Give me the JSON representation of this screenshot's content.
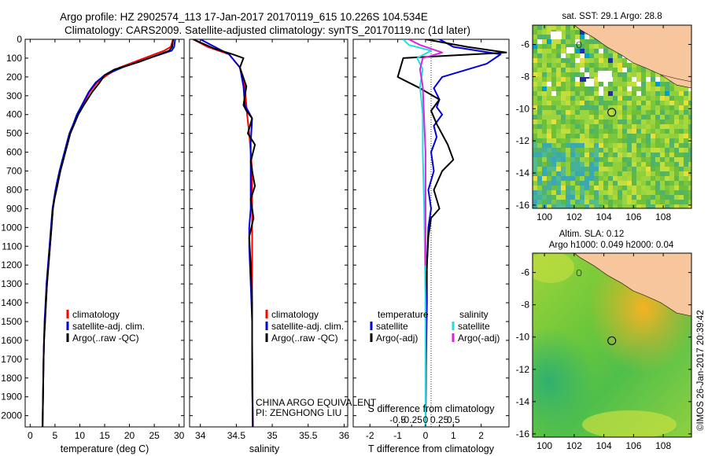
{
  "header": {
    "title_line1": "Argo profile: HZ 2902574_113 17-Jan-2017 20170119_615 10.226S 104.534E",
    "title_line2": "Climatology: CARS2009. Satellite-adjusted climatology: synTS_20170119.nc (1d later)"
  },
  "footer": {
    "credit": "©IMOS 26-Jan-2017 20:39:42",
    "agency_line1": "CHINA ARGO EQUIVALENT",
    "agency_line2": "PI: ZENGHONG LIU"
  },
  "colors": {
    "clim": "#ff0000",
    "sat": "#0000dd",
    "argo": "#000000",
    "sat_s": "#22dddd",
    "argo_s": "#dd22dd",
    "land": "#f7c69c"
  },
  "chart_data": [
    {
      "type": "line",
      "name": "temperature-profile",
      "xlabel": "temperature (deg C)",
      "ylabel": "",
      "xlim": [
        -1,
        31
      ],
      "ylim": [
        2060,
        0
      ],
      "xticks": [
        0,
        5,
        10,
        15,
        20,
        25,
        30
      ],
      "yticks": [
        0,
        100,
        200,
        300,
        400,
        500,
        600,
        700,
        800,
        900,
        1000,
        1100,
        1200,
        1300,
        1400,
        1500,
        1600,
        1700,
        1800,
        1900,
        2000
      ],
      "legend": [
        "climatology",
        "satellite-adj. clim.",
        "Argo(..raw -QC)"
      ],
      "legend_position": "lower-right",
      "series": [
        {
          "name": "climatology",
          "color": "#ff0000",
          "x": [
            28.8,
            28.3,
            27.0,
            23.0,
            18.0,
            15.5,
            13.5,
            12.0,
            10.5,
            9.5,
            8.8,
            8.0,
            7.5,
            7.0,
            6.5,
            6.0,
            5.6,
            5.2,
            4.9,
            4.6,
            4.3,
            4.0,
            3.7,
            3.4,
            3.2,
            3.0,
            2.8,
            2.7,
            2.6,
            2.5
          ],
          "y": [
            0,
            40,
            60,
            100,
            150,
            190,
            230,
            280,
            350,
            400,
            450,
            500,
            550,
            600,
            650,
            700,
            750,
            800,
            850,
            900,
            1000,
            1100,
            1200,
            1300,
            1400,
            1500,
            1600,
            1700,
            1900,
            2060
          ]
        },
        {
          "name": "satellite-adj. clim.",
          "color": "#0000dd",
          "x": [
            29.2,
            29.0,
            28.5,
            24.0,
            18.5,
            15.0,
            13.2,
            11.8,
            10.4,
            9.4,
            8.7,
            7.9,
            7.4,
            6.9,
            6.4,
            5.9,
            5.5,
            5.1,
            4.8,
            4.5,
            4.2,
            3.9,
            3.6,
            3.3,
            3.1,
            2.9,
            2.8,
            2.7,
            2.6,
            2.5
          ],
          "y": [
            0,
            40,
            60,
            100,
            150,
            190,
            230,
            280,
            350,
            400,
            450,
            500,
            550,
            600,
            650,
            700,
            750,
            800,
            850,
            900,
            1000,
            1100,
            1200,
            1300,
            1400,
            1500,
            1600,
            1700,
            1900,
            2060
          ]
        },
        {
          "name": "Argo(..raw -QC)",
          "color": "#000000",
          "x": [
            28.8,
            28.6,
            28.0,
            22.0,
            17.0,
            15.0,
            14.0,
            12.5,
            10.8,
            9.7,
            8.9,
            8.1,
            7.6,
            7.1,
            6.6,
            6.1,
            5.7,
            5.3,
            4.9,
            4.6,
            4.3,
            4.0,
            3.7,
            3.4,
            3.2,
            3.0,
            2.8,
            2.7,
            2.6,
            2.5
          ],
          "y": [
            0,
            40,
            60,
            120,
            160,
            190,
            230,
            280,
            350,
            400,
            450,
            500,
            550,
            600,
            650,
            700,
            750,
            800,
            850,
            900,
            1000,
            1100,
            1200,
            1300,
            1400,
            1500,
            1600,
            1700,
            1900,
            2060
          ]
        }
      ]
    },
    {
      "type": "line",
      "name": "salinity-profile",
      "xlabel": "salinity",
      "ylabel": "",
      "xlim": [
        33.85,
        36.05
      ],
      "ylim": [
        2060,
        0
      ],
      "xticks": [
        34,
        34.5,
        35,
        35.5,
        36
      ],
      "legend": [
        "climatology",
        "satellite-adj. clim.",
        "Argo(..raw -QC)"
      ],
      "legend_position": "lower-right",
      "series": [
        {
          "name": "climatology",
          "color": "#ff0000",
          "x": [
            33.9,
            34.1,
            34.4,
            34.55,
            34.62,
            34.65,
            34.68,
            34.7,
            34.72,
            34.72,
            34.72,
            34.72,
            34.72,
            34.72,
            34.72,
            34.73
          ],
          "y": [
            0,
            40,
            80,
            150,
            250,
            400,
            500,
            600,
            700,
            900,
            1000,
            1200,
            1400,
            1600,
            1800,
            2060
          ]
        },
        {
          "name": "satellite-adj. clim.",
          "color": "#0000dd",
          "x": [
            34.0,
            34.2,
            34.4,
            34.55,
            34.6,
            34.62,
            34.72,
            34.7,
            34.7,
            34.7,
            34.68,
            34.68,
            34.7,
            34.72,
            34.72,
            34.73
          ],
          "y": [
            0,
            40,
            80,
            150,
            250,
            350,
            420,
            550,
            700,
            900,
            1000,
            1100,
            1300,
            1500,
            1800,
            2060
          ]
        },
        {
          "name": "Argo(..raw -QC)",
          "color": "#000000",
          "x": [
            33.9,
            34.2,
            34.45,
            34.6,
            34.55,
            34.64,
            34.6,
            34.64,
            34.72,
            34.66,
            34.76,
            34.7,
            34.73,
            34.76,
            34.7,
            34.74,
            34.68,
            34.7,
            34.72,
            34.72,
            34.73
          ],
          "y": [
            0,
            50,
            80,
            100,
            150,
            250,
            350,
            380,
            420,
            500,
            560,
            650,
            720,
            780,
            850,
            950,
            1050,
            1200,
            1400,
            1600,
            2060
          ]
        }
      ]
    },
    {
      "type": "line",
      "name": "difference-profile",
      "xlabel": "T difference from climatology",
      "x2label": "S difference from climatology",
      "ylabel": "",
      "xlim": [
        -2.6,
        3.0
      ],
      "ylim": [
        2060,
        0
      ],
      "xticks": [
        -2,
        -1,
        0,
        1,
        2
      ],
      "x2ticks_labels": [
        "-0.5",
        "-0.25",
        "0",
        "0.25",
        "0.5"
      ],
      "legend": [
        "temperature",
        "satellite",
        "Argo(-adj)",
        "salinity",
        "satellite",
        "Argo(-adj)"
      ],
      "legend_position": "lower-center",
      "series": [
        {
          "name": "temperature satellite",
          "color": "#0000dd",
          "x": [
            0.5,
            1.0,
            2.7,
            2.2,
            0.6,
            0.3,
            0.5,
            0.4,
            0.6,
            0.3,
            0.4,
            0.2,
            0.3,
            0.1,
            0.2,
            0.1,
            0.05,
            0.05,
            0.02,
            0.0
          ],
          "y": [
            0,
            40,
            80,
            130,
            200,
            260,
            320,
            360,
            400,
            460,
            520,
            600,
            700,
            800,
            900,
            1000,
            1200,
            1400,
            1700,
            2060
          ]
        },
        {
          "name": "temperature Argo(-adj)",
          "color": "#000000",
          "x": [
            0.0,
            1.5,
            2.9,
            -0.8,
            -1.0,
            -0.2,
            0.5,
            0.2,
            0.4,
            0.8,
            1.0,
            0.6,
            0.3,
            0.5,
            0.2,
            0.1,
            0.05,
            0.0,
            0.02,
            0.0
          ],
          "y": [
            0,
            40,
            70,
            100,
            200,
            260,
            320,
            380,
            450,
            560,
            640,
            700,
            800,
            900,
            950,
            1050,
            1200,
            1400,
            1700,
            2060
          ]
        },
        {
          "name": "salinity satellite",
          "color": "#22dddd",
          "x": [
            -0.8,
            -0.6,
            0.2,
            -0.3,
            -0.1,
            -0.2,
            -0.1,
            -0.1,
            -0.05,
            0.0,
            0.0
          ],
          "y": [
            0,
            30,
            60,
            100,
            160,
            250,
            400,
            600,
            900,
            1400,
            2060
          ]
        },
        {
          "name": "salinity Argo(-adj)",
          "color": "#dd22dd",
          "x": [
            -0.6,
            -0.2,
            0.6,
            -0.1,
            -0.2,
            -0.1,
            0.0,
            0.0
          ],
          "y": [
            0,
            30,
            70,
            100,
            160,
            250,
            600,
            1200
          ]
        }
      ]
    },
    {
      "type": "heatmap",
      "name": "sst-map",
      "title": "sat. SST: 29.1  Argo: 28.8",
      "xlim": [
        99.2,
        109.9
      ],
      "ylim": [
        -16.2,
        -4.8
      ],
      "xticks": [
        100,
        102,
        104,
        106,
        108
      ],
      "yticks": [
        -6,
        -8,
        -10,
        -12,
        -14,
        -16
      ],
      "argo_position": {
        "lon": 104.534,
        "lat": -10.226
      }
    },
    {
      "type": "heatmap",
      "name": "sla-map",
      "title": "Altim. SLA: 0.12",
      "subtitle": "Argo h1000: 0.049 h2000: 0.04",
      "xlim": [
        99.2,
        109.9
      ],
      "ylim": [
        -16.2,
        -4.8
      ],
      "xticks": [
        100,
        102,
        104,
        106,
        108
      ],
      "yticks": [
        -6,
        -8,
        -10,
        -12,
        -14,
        -16
      ],
      "argo_position": {
        "lon": 104.534,
        "lat": -10.226
      }
    }
  ]
}
